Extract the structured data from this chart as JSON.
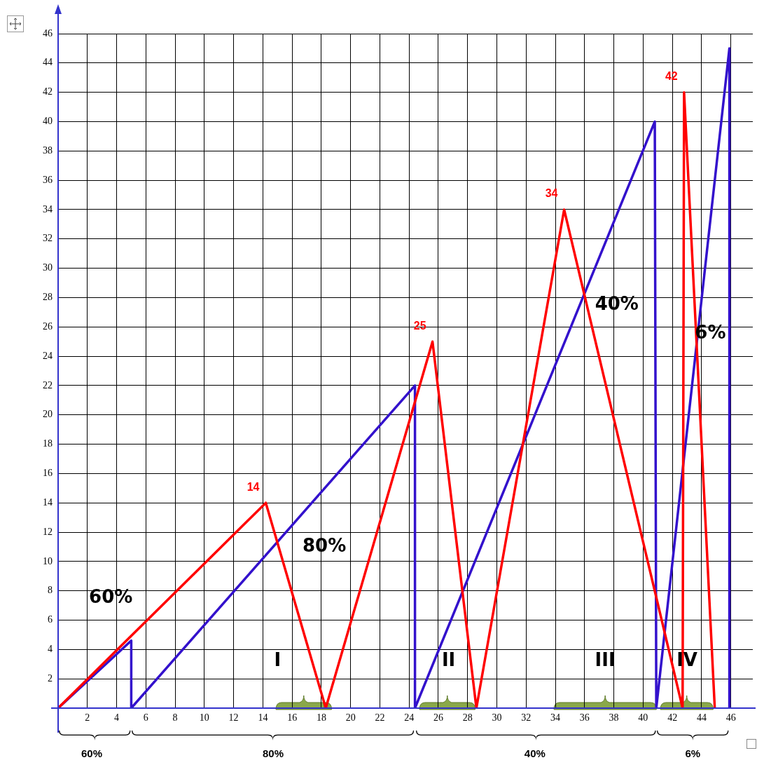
{
  "chart_data": {
    "type": "line",
    "x": [
      0,
      14.2,
      18.3,
      25.6,
      28.6,
      34.6,
      42.7,
      42.8,
      44.9
    ],
    "series": [
      {
        "color": "#ff0000",
        "values": [
          0,
          14,
          0,
          25,
          0,
          34,
          0,
          42,
          0
        ]
      },
      {
        "color": "#3311cc",
        "x": [
          0,
          5,
          5,
          24.4,
          24.4,
          40.8,
          40.9,
          45.9,
          45.9
        ],
        "values": [
          0,
          4.6,
          0,
          22,
          0,
          40,
          0,
          45,
          0
        ]
      }
    ],
    "xlim": [
      0,
      47.5
    ],
    "ylim": [
      0,
      46
    ],
    "xticks": [
      2,
      4,
      6,
      8,
      10,
      12,
      14,
      16,
      18,
      20,
      22,
      24,
      26,
      28,
      30,
      32,
      34,
      36,
      38,
      40,
      42,
      44,
      46
    ],
    "yticks": [
      2,
      4,
      6,
      8,
      10,
      12,
      14,
      16,
      18,
      20,
      22,
      24,
      26,
      28,
      30,
      32,
      34,
      36,
      38,
      40,
      42,
      44,
      46
    ],
    "grid": true,
    "marker": "none",
    "line_style": "solid",
    "annotations": [
      {
        "text": "14",
        "x": 14.2,
        "y": 14
      },
      {
        "text": "25",
        "x": 25.6,
        "y": 25
      },
      {
        "text": "34",
        "x": 34.6,
        "y": 34
      },
      {
        "text": "42",
        "x": 42.8,
        "y": 42
      },
      "60%",
      "80%",
      "40%",
      "6%",
      "I",
      "II",
      "III",
      "IV",
      "60%",
      "80%",
      "40%",
      "6%"
    ]
  }
}
